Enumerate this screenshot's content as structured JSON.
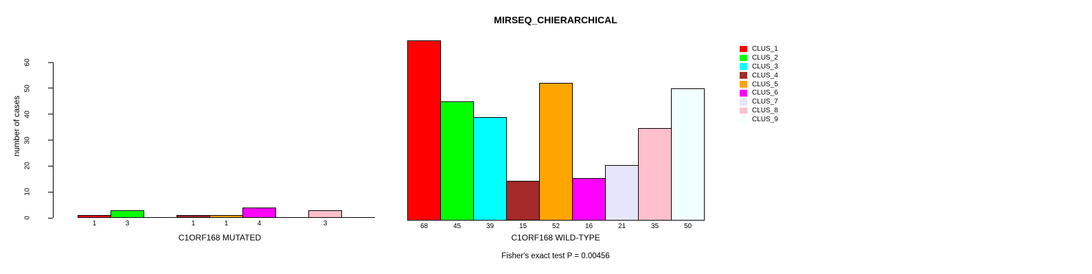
{
  "title": "MIRSEQ_CHIERARCHICAL",
  "subtitle": "Fisher's exact test P = 0.00456",
  "ylabel": "number of cases",
  "palette": [
    "#FF0000",
    "#00FF00",
    "#00FFFF",
    "#A52A2A",
    "#FFA500",
    "#FF00FF",
    "#E6E6FA",
    "#FFC0CB",
    "#F0FFFF"
  ],
  "legend": {
    "position": "right",
    "items": [
      {
        "label": "CLUS_1",
        "color": "#FF0000"
      },
      {
        "label": "CLUS_2",
        "color": "#00FF00"
      },
      {
        "label": "CLUS_3",
        "color": "#00FFFF"
      },
      {
        "label": "CLUS_4",
        "color": "#A52A2A"
      },
      {
        "label": "CLUS_5",
        "color": "#FFA500"
      },
      {
        "label": "CLUS_6",
        "color": "#FF00FF"
      },
      {
        "label": "CLUS_7",
        "color": "#E6E6FA"
      },
      {
        "label": "CLUS_8",
        "color": "#FFC0CB"
      },
      {
        "label": "CLUS_9",
        "color": "#F0FFFF"
      }
    ]
  },
  "chart_data": [
    {
      "type": "bar",
      "title": "MIRSEQ_CHIERARCHICAL",
      "xlabel": "C1ORF168 MUTATED",
      "ylabel": "number of cases",
      "categories": [
        "CLUS_1",
        "CLUS_2",
        "CLUS_3",
        "CLUS_4",
        "CLUS_5",
        "CLUS_6",
        "CLUS_7",
        "CLUS_8",
        "CLUS_9"
      ],
      "values": [
        1,
        3,
        0,
        1,
        1,
        4,
        0,
        3,
        0
      ],
      "bar_value_labels": [
        "1",
        "3",
        "",
        "1",
        "1",
        "4",
        "",
        "3",
        ""
      ],
      "ylim": [
        0,
        60
      ],
      "yticks": [
        0,
        10,
        20,
        30,
        40,
        50,
        60
      ],
      "grid": false,
      "annotation": "Fisher's exact test P = 0.00456"
    },
    {
      "type": "bar",
      "title": "MIRSEQ_CHIERARCHICAL",
      "xlabel": "C1ORF168 WILD-TYPE",
      "ylabel": "number of cases",
      "categories": [
        "CLUS_1",
        "CLUS_2",
        "CLUS_3",
        "CLUS_4",
        "CLUS_5",
        "CLUS_6",
        "CLUS_7",
        "CLUS_8",
        "CLUS_9"
      ],
      "values": [
        68,
        45,
        39,
        15,
        52,
        16,
        21,
        35,
        50
      ],
      "bar_value_labels": [
        "68",
        "45",
        "39",
        "15",
        "52",
        "16",
        "21",
        "35",
        "50"
      ],
      "ylim": [
        0,
        60
      ],
      "yticks": [
        0,
        10,
        20,
        30,
        40,
        50,
        60
      ],
      "grid": false,
      "annotation": "Fisher's exact test P = 0.00456"
    }
  ]
}
